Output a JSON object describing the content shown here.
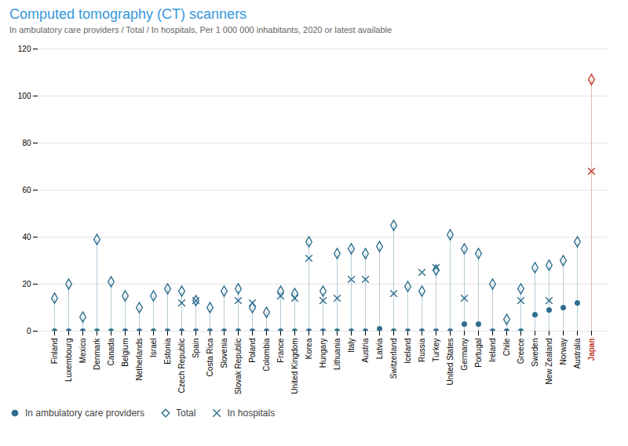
{
  "chart_data": {
    "type": "scatter",
    "title": "Computed tomography (CT) scanners",
    "subtitle": "In ambulatory care providers / Total / In hospitals, Per 1 000 000 inhabitants, 2020 or latest available",
    "categories": [
      "Finland",
      "Luxembourg",
      "Mexico",
      "Denmark",
      "Canada",
      "Belgium",
      "Netherlands",
      "Israel",
      "Estonia",
      "Czech Republic",
      "Spain",
      "Costa Rica",
      "Slovenia",
      "Slovak Republic",
      "Poland",
      "Colombia",
      "France",
      "United Kingdom",
      "Korea",
      "Hungary",
      "Lithuania",
      "Italy",
      "Austria",
      "Latvia",
      "Switzerland",
      "Iceland",
      "Russia",
      "Turkey",
      "United States",
      "Germany",
      "Portugal",
      "Ireland",
      "Chile",
      "Greece",
      "Sweden",
      "New Zealand",
      "Norway",
      "Australia",
      "Japan"
    ],
    "series": [
      {
        "name": "In ambulatory care providers",
        "marker": "circle",
        "color": "#2e6e8e",
        "colors": [
          "#2e6e8e",
          "#2e6e8e",
          "#2e6e8e",
          "#2e6e8e",
          "#2e6e8e",
          "#2e6e8e",
          "#2e6e8e",
          "#2e6e8e",
          "#2e6e8e",
          "#2e6e8e",
          "#2e6e8e",
          "#2e6e8e",
          "#2e6e8e",
          "#2e6e8e",
          "#2e6e8e",
          "#2e6e8e",
          "#2e6e8e",
          "#2e6e8e",
          "#2e6e8e",
          "#2e6e8e",
          "#2e6e8e",
          "#2e6e8e",
          "#2e6e8e",
          "#2e6e8e",
          "#2e6e8e",
          "#2e6e8e",
          "#2e6e8e",
          "#2e6e8e",
          "#2e6e8e",
          "#2e6e8e",
          "#2e6e8e",
          "#2e6e8e",
          "#2e6e8e",
          "#2e6e8e",
          "#2e6e8e",
          "#2e6e8e",
          "#2e6e8e",
          "#2e6e8e",
          "#c0392b"
        ],
        "values": [
          0,
          0,
          0,
          0,
          0,
          0,
          0,
          0,
          0,
          0,
          0,
          0,
          0,
          0,
          0,
          0,
          0,
          0,
          0,
          0,
          0,
          0,
          0,
          1,
          0,
          0,
          0,
          0,
          0,
          3,
          3,
          0,
          0,
          0,
          7,
          9,
          10,
          12,
          null
        ]
      },
      {
        "name": "Total",
        "marker": "diamond",
        "color": "#2e6e8e",
        "colors": [
          "#2e6e8e",
          "#2e6e8e",
          "#2e6e8e",
          "#2e6e8e",
          "#2e6e8e",
          "#2e6e8e",
          "#2e6e8e",
          "#2e6e8e",
          "#2e6e8e",
          "#2e6e8e",
          "#2e6e8e",
          "#2e6e8e",
          "#2e6e8e",
          "#2e6e8e",
          "#2e6e8e",
          "#2e6e8e",
          "#2e6e8e",
          "#2e6e8e",
          "#2e6e8e",
          "#2e6e8e",
          "#2e6e8e",
          "#2e6e8e",
          "#2e6e8e",
          "#2e6e8e",
          "#2e6e8e",
          "#2e6e8e",
          "#2e6e8e",
          "#2e6e8e",
          "#2e6e8e",
          "#2e6e8e",
          "#2e6e8e",
          "#2e6e8e",
          "#2e6e8e",
          "#2e6e8e",
          "#2e6e8e",
          "#2e6e8e",
          "#2e6e8e",
          "#2e6e8e",
          "#c0392b"
        ],
        "values": [
          14,
          20,
          6,
          39,
          21,
          15,
          10,
          15,
          18,
          17,
          13,
          10,
          17,
          18,
          10,
          8,
          17,
          16,
          38,
          17,
          33,
          35,
          33,
          36,
          45,
          19,
          17,
          26,
          41,
          35,
          33,
          20,
          5,
          18,
          27,
          28,
          30,
          38,
          107
        ]
      },
      {
        "name": "In hospitals",
        "marker": "x",
        "color": "#2e6e8e",
        "colors": [
          "#2e6e8e",
          "#2e6e8e",
          "#2e6e8e",
          "#2e6e8e",
          "#2e6e8e",
          "#2e6e8e",
          "#2e6e8e",
          "#2e6e8e",
          "#2e6e8e",
          "#2e6e8e",
          "#2e6e8e",
          "#2e6e8e",
          "#2e6e8e",
          "#2e6e8e",
          "#2e6e8e",
          "#2e6e8e",
          "#2e6e8e",
          "#2e6e8e",
          "#2e6e8e",
          "#2e6e8e",
          "#2e6e8e",
          "#2e6e8e",
          "#2e6e8e",
          "#2e6e8e",
          "#2e6e8e",
          "#2e6e8e",
          "#2e6e8e",
          "#2e6e8e",
          "#2e6e8e",
          "#2e6e8e",
          "#2e6e8e",
          "#2e6e8e",
          "#2e6e8e",
          "#2e6e8e",
          "#2e6e8e",
          "#2e6e8e",
          "#2e6e8e",
          "#2e6e8e",
          "#c0392b"
        ],
        "values": [
          null,
          null,
          null,
          null,
          null,
          null,
          null,
          null,
          null,
          12,
          13,
          null,
          null,
          13,
          12,
          null,
          15,
          14,
          31,
          13,
          14,
          22,
          22,
          null,
          16,
          null,
          25,
          27,
          null,
          14,
          null,
          null,
          null,
          13,
          null,
          13,
          null,
          null,
          68
        ]
      }
    ],
    "ylim": [
      0,
      120
    ],
    "yticks": [
      0,
      20,
      40,
      60,
      80,
      100,
      120
    ],
    "grid": true,
    "legend": "lower left"
  }
}
